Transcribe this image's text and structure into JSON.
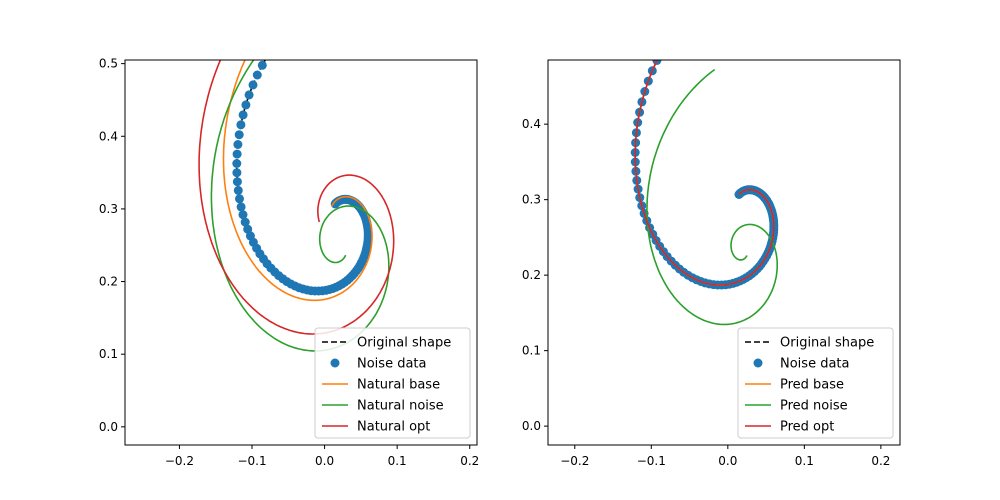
{
  "chart_data": [
    {
      "type": "line",
      "title": "",
      "xlabel": "",
      "ylabel": "",
      "xlim": [
        -0.275,
        0.21
      ],
      "ylim": [
        -0.025,
        0.505
      ],
      "xticks": [
        -0.2,
        -0.1,
        0.0,
        0.1,
        0.2
      ],
      "xtick_labels": [
        "−0.2",
        "−0.1",
        "0.0",
        "0.1",
        "0.2"
      ],
      "yticks": [
        0.0,
        0.1,
        0.2,
        0.3,
        0.4,
        0.5
      ],
      "ytick_labels": [
        "0.0",
        "0.1",
        "0.2",
        "0.3",
        "0.4",
        "0.5"
      ],
      "legend_position": "lower-right",
      "series": [
        {
          "name": "Original shape",
          "style": "dashed",
          "color": "#000000",
          "spiral": {
            "r0": 0.232,
            "k": -0.4,
            "tmax": 6.5,
            "ax": 0.0,
            "ay": 0.46,
            "sx": 1,
            "phase": 0
          }
        },
        {
          "name": "Noise data",
          "style": "markers",
          "color": "#1f77b4",
          "n_points": 110,
          "spiral": {
            "r0": 0.232,
            "k": -0.4,
            "tmax": 6.5,
            "ax": 0.0,
            "ay": 0.46,
            "sx": 1,
            "phase": 0
          }
        },
        {
          "name": "Natural base",
          "style": "solid",
          "color": "#ff7f0e",
          "spiral": {
            "r0": 0.26,
            "k": -0.4,
            "tmax": 6.8,
            "ax": 0.0,
            "ay": 0.46,
            "sx": 1,
            "phase": 0.1
          }
        },
        {
          "name": "Natural noise",
          "style": "solid",
          "color": "#2ca02c",
          "spiral": {
            "r0": 0.25,
            "k": -0.3,
            "tmax": 10,
            "ax": 0.0,
            "ay": 0.4,
            "sx": 1,
            "phase": 0.55
          }
        },
        {
          "name": "Natural opt",
          "style": "solid",
          "color": "#d62728",
          "spiral": {
            "r0": 0.28,
            "k": -0.3,
            "tmax": 7.8,
            "ax": 0.0,
            "ay": 0.46,
            "sx": 1,
            "phase": 0.2
          }
        }
      ]
    },
    {
      "type": "line",
      "title": "",
      "xlabel": "",
      "ylabel": "",
      "xlim": [
        -0.235,
        0.225
      ],
      "ylim": [
        -0.025,
        0.485
      ],
      "xticks": [
        -0.2,
        -0.1,
        0.0,
        0.1,
        0.2
      ],
      "xtick_labels": [
        "−0.2",
        "−0.1",
        "0.0",
        "0.1",
        "0.2"
      ],
      "yticks": [
        0.0,
        0.1,
        0.2,
        0.3,
        0.4
      ],
      "ytick_labels": [
        "0.0",
        "0.1",
        "0.2",
        "0.3",
        "0.4"
      ],
      "legend_position": "lower-right",
      "series": [
        {
          "name": "Original shape",
          "style": "dashed",
          "color": "#000000",
          "spiral": {
            "r0": 0.232,
            "k": -0.4,
            "tmax": 6.5,
            "ax": 0.0,
            "ay": 0.46,
            "sx": 1,
            "phase": 0
          }
        },
        {
          "name": "Noise data",
          "style": "markers",
          "color": "#1f77b4",
          "n_points": 110,
          "spiral": {
            "r0": 0.232,
            "k": -0.4,
            "tmax": 6.5,
            "ax": 0.0,
            "ay": 0.46,
            "sx": 1,
            "phase": 0
          }
        },
        {
          "name": "Pred base",
          "style": "solid",
          "color": "#ff7f0e",
          "spiral": {
            "r0": 0.232,
            "k": -0.4,
            "tmax": 6.5,
            "ax": 0.0,
            "ay": 0.46,
            "sx": 1,
            "phase": 0
          }
        },
        {
          "name": "Pred noise",
          "style": "solid",
          "color": "#2ca02c",
          "spiral": {
            "r0": 0.185,
            "k": -0.33,
            "tmax": 10,
            "ax": 0.0,
            "ay": 0.375,
            "sx": 1,
            "phase": 0.5
          }
        },
        {
          "name": "Pred opt",
          "style": "solid",
          "color": "#d62728",
          "spiral": {
            "r0": 0.232,
            "k": -0.4,
            "tmax": 6.5,
            "ax": 0.0,
            "ay": 0.46,
            "sx": 1,
            "phase": 0
          }
        }
      ]
    }
  ]
}
